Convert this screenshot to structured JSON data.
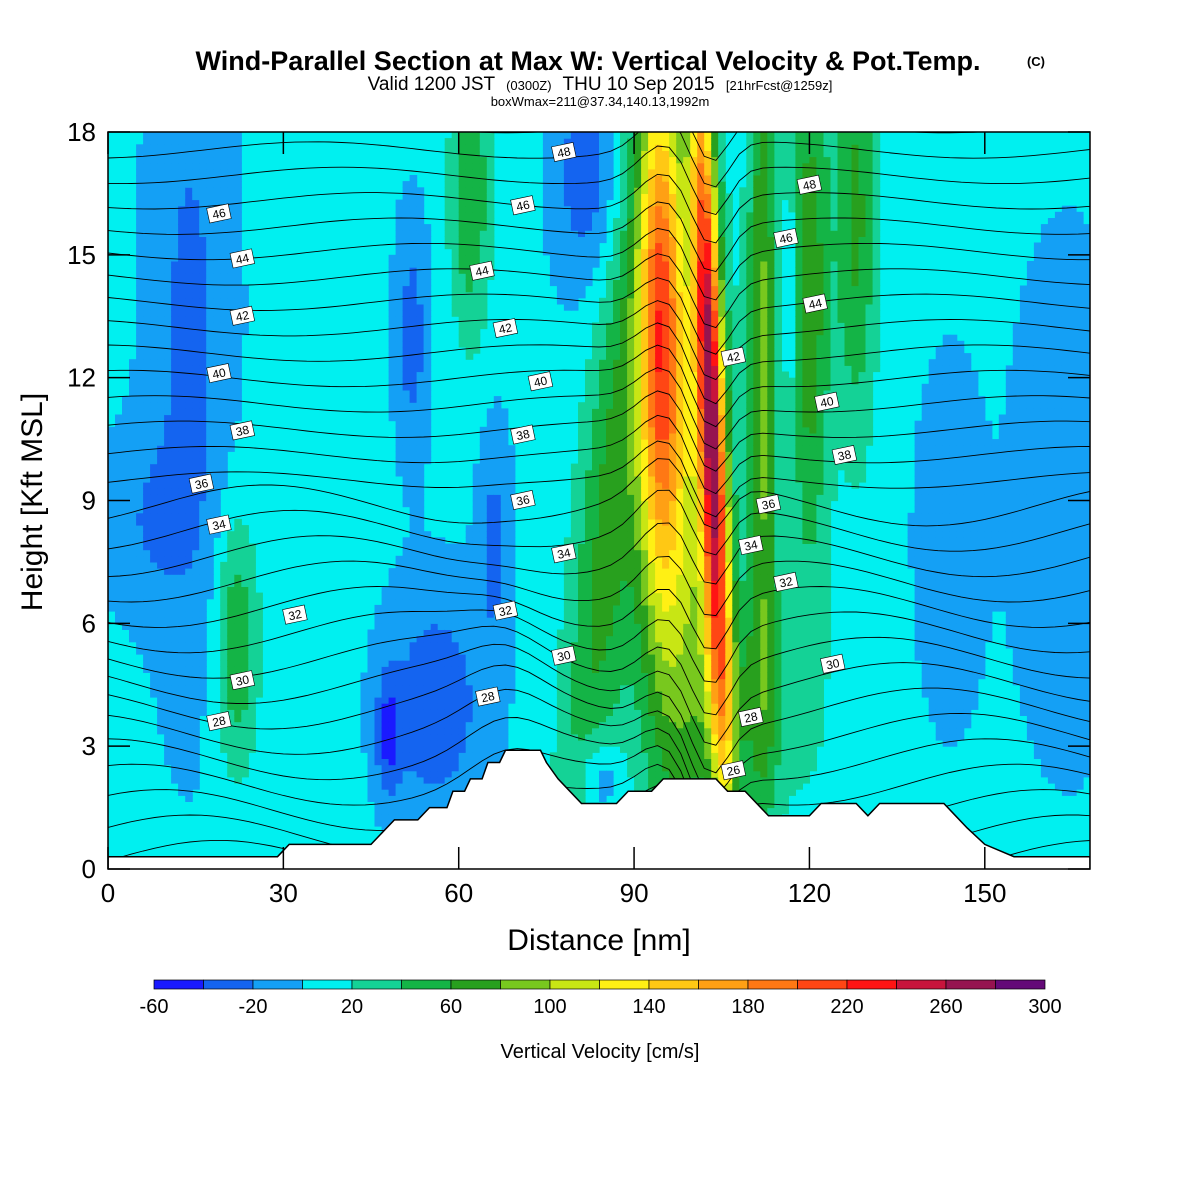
{
  "header": {
    "title": "Wind-Parallel Section at Max W: Vertical Velocity & Pot.Temp.",
    "copyright": "(C)",
    "valid_line": {
      "prefix": "Valid 1200 JST",
      "utc": "(0300Z)",
      "date": "THU 10 Sep 2015",
      "forecast": "[21hrFcst@1259z]"
    },
    "box_info": "boxWmax=211@37.34,140.13,1992m"
  },
  "chart_data": {
    "type": "heatmap",
    "xlabel": "Distance [nm]",
    "ylabel": "Height [Kft MSL]",
    "xlim": [
      0,
      168
    ],
    "ylim": [
      0,
      18
    ],
    "x_ticks": [
      0,
      30,
      60,
      90,
      120,
      150
    ],
    "y_ticks": [
      0,
      3,
      6,
      9,
      12,
      15,
      18
    ],
    "colorbar": {
      "label": "Vertical Velocity [cm/s]",
      "min": -60,
      "max": 300,
      "step": 20,
      "tick_labels": [
        "-60",
        "-20",
        "20",
        "60",
        "100",
        "140",
        "180",
        "220",
        "260",
        "300"
      ],
      "colors": [
        "#1a1aff",
        "#1464f0",
        "#14a0f5",
        "#00f0f0",
        "#14d296",
        "#14b446",
        "#28a01e",
        "#78c81e",
        "#c8e614",
        "#fff014",
        "#ffc814",
        "#ffa014",
        "#ff7814",
        "#ff4614",
        "#ff1414",
        "#c8143c",
        "#961450",
        "#640a78"
      ]
    },
    "terrain": [
      [
        0,
        0.3
      ],
      [
        29,
        0.3
      ],
      [
        31,
        0.6
      ],
      [
        45,
        0.6
      ],
      [
        47,
        0.9
      ],
      [
        49,
        1.2
      ],
      [
        53,
        1.2
      ],
      [
        55,
        1.5
      ],
      [
        58,
        1.5
      ],
      [
        59,
        1.9
      ],
      [
        61,
        1.9
      ],
      [
        62,
        2.2
      ],
      [
        64,
        2.2
      ],
      [
        65,
        2.6
      ],
      [
        67,
        2.6
      ],
      [
        68,
        2.9
      ],
      [
        74,
        2.9
      ],
      [
        75,
        2.6
      ],
      [
        77,
        2.2
      ],
      [
        79,
        1.9
      ],
      [
        81,
        1.6
      ],
      [
        87,
        1.6
      ],
      [
        89,
        1.9
      ],
      [
        93,
        1.9
      ],
      [
        95,
        2.2
      ],
      [
        104,
        2.2
      ],
      [
        106,
        1.9
      ],
      [
        109,
        1.9
      ],
      [
        111,
        1.6
      ],
      [
        113,
        1.3
      ],
      [
        120,
        1.3
      ],
      [
        122,
        1.6
      ],
      [
        128,
        1.6
      ],
      [
        130,
        1.3
      ],
      [
        132,
        1.6
      ],
      [
        143,
        1.6
      ],
      [
        145,
        1.3
      ],
      [
        147,
        1.0
      ],
      [
        150,
        0.6
      ],
      [
        155,
        0.3
      ],
      [
        168,
        0.3
      ]
    ],
    "contour_labels": [
      {
        "text": "48",
        "x": 78,
        "y": 17.5
      },
      {
        "text": "48",
        "x": 120,
        "y": 16.7
      },
      {
        "text": "46",
        "x": 19,
        "y": 16.0
      },
      {
        "text": "46",
        "x": 71,
        "y": 16.2
      },
      {
        "text": "46",
        "x": 116,
        "y": 15.4
      },
      {
        "text": "44",
        "x": 23,
        "y": 14.9
      },
      {
        "text": "44",
        "x": 64,
        "y": 14.6
      },
      {
        "text": "44",
        "x": 121,
        "y": 13.8
      },
      {
        "text": "42",
        "x": 23,
        "y": 13.5
      },
      {
        "text": "42",
        "x": 68,
        "y": 13.2
      },
      {
        "text": "42",
        "x": 107,
        "y": 12.5
      },
      {
        "text": "40",
        "x": 19,
        "y": 12.1
      },
      {
        "text": "40",
        "x": 74,
        "y": 11.9
      },
      {
        "text": "40",
        "x": 123,
        "y": 11.4
      },
      {
        "text": "38",
        "x": 23,
        "y": 10.7
      },
      {
        "text": "38",
        "x": 71,
        "y": 10.6
      },
      {
        "text": "38",
        "x": 126,
        "y": 10.1
      },
      {
        "text": "36",
        "x": 16,
        "y": 9.4
      },
      {
        "text": "36",
        "x": 71,
        "y": 9.0
      },
      {
        "text": "36",
        "x": 113,
        "y": 8.9
      },
      {
        "text": "34",
        "x": 19,
        "y": 8.4
      },
      {
        "text": "34",
        "x": 78,
        "y": 7.7
      },
      {
        "text": "34",
        "x": 110,
        "y": 7.9
      },
      {
        "text": "32",
        "x": 32,
        "y": 6.2
      },
      {
        "text": "32",
        "x": 68,
        "y": 6.3
      },
      {
        "text": "32",
        "x": 116,
        "y": 7.0
      },
      {
        "text": "30",
        "x": 23,
        "y": 4.6
      },
      {
        "text": "30",
        "x": 78,
        "y": 5.2
      },
      {
        "text": "30",
        "x": 124,
        "y": 5.0
      },
      {
        "text": "28",
        "x": 19,
        "y": 3.6
      },
      {
        "text": "28",
        "x": 65,
        "y": 4.2
      },
      {
        "text": "28",
        "x": 110,
        "y": 3.7
      },
      {
        "text": "26",
        "x": 107,
        "y": 2.4
      }
    ]
  }
}
